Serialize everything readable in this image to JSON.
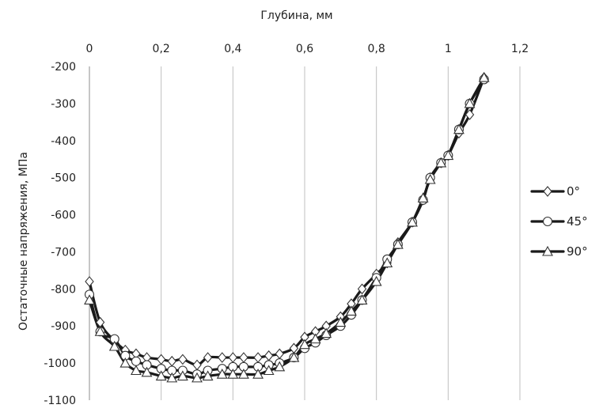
{
  "chart_data": {
    "type": "line",
    "xlabel": "Глубина, мм",
    "ylabel": "Остаточные напряжения, МПа",
    "xlim": [
      0,
      1.2
    ],
    "ylim": [
      -1100,
      -200
    ],
    "xticks": [
      "0",
      "0,2",
      "0,4",
      "0,6",
      "0,8",
      "1",
      "1,2"
    ],
    "xtick_values": [
      0,
      0.2,
      0.4,
      0.6,
      0.8,
      1.0,
      1.2
    ],
    "yticks": [
      "-200",
      "-300",
      "-400",
      "-500",
      "-600",
      "-700",
      "-800",
      "-900",
      "-1000",
      "-1100"
    ],
    "ytick_values": [
      -200,
      -300,
      -400,
      -500,
      -600,
      -700,
      -800,
      -900,
      -1000,
      -1100
    ],
    "x_axis_position": "top",
    "grid": "vertical",
    "legend_position": "right",
    "line_color": "#1a1a1a",
    "series": [
      {
        "name": "0°",
        "marker": "diamond",
        "x": [
          0,
          0.03,
          0.07,
          0.1,
          0.13,
          0.16,
          0.2,
          0.23,
          0.26,
          0.3,
          0.33,
          0.37,
          0.4,
          0.43,
          0.47,
          0.5,
          0.53,
          0.57,
          0.6,
          0.63,
          0.66,
          0.7,
          0.73,
          0.76,
          0.8,
          0.83,
          0.86,
          0.9,
          0.93,
          0.95,
          0.98,
          1.0,
          1.03,
          1.06,
          1.1
        ],
        "y": [
          -780,
          -890,
          -940,
          -965,
          -975,
          -985,
          -990,
          -995,
          -990,
          -1005,
          -985,
          -985,
          -985,
          -985,
          -985,
          -980,
          -975,
          -960,
          -930,
          -915,
          -900,
          -875,
          -840,
          -800,
          -760,
          -730,
          -675,
          -620,
          -560,
          -500,
          -460,
          -440,
          -380,
          -330,
          -230
        ]
      },
      {
        "name": "45°",
        "marker": "circle",
        "x": [
          0,
          0.03,
          0.07,
          0.1,
          0.13,
          0.16,
          0.2,
          0.23,
          0.26,
          0.3,
          0.33,
          0.37,
          0.4,
          0.43,
          0.47,
          0.5,
          0.53,
          0.57,
          0.6,
          0.63,
          0.66,
          0.7,
          0.73,
          0.76,
          0.8,
          0.83,
          0.86,
          0.9,
          0.93,
          0.95,
          0.98,
          1.0,
          1.03,
          1.06,
          1.1
        ],
        "y": [
          -815,
          -915,
          -935,
          -980,
          -995,
          -1005,
          -1015,
          -1020,
          -1020,
          -1030,
          -1020,
          -1015,
          -1010,
          -1010,
          -1010,
          -1005,
          -1000,
          -985,
          -960,
          -945,
          -925,
          -900,
          -870,
          -830,
          -770,
          -720,
          -680,
          -620,
          -560,
          -500,
          -460,
          -440,
          -370,
          -300,
          -235
        ]
      },
      {
        "name": "90°",
        "marker": "triangle",
        "x": [
          0,
          0.03,
          0.07,
          0.1,
          0.13,
          0.16,
          0.2,
          0.23,
          0.26,
          0.3,
          0.33,
          0.37,
          0.4,
          0.43,
          0.47,
          0.5,
          0.53,
          0.57,
          0.6,
          0.63,
          0.66,
          0.7,
          0.73,
          0.76,
          0.8,
          0.83,
          0.86,
          0.9,
          0.93,
          0.95,
          0.98,
          1.0,
          1.03,
          1.06,
          1.1
        ],
        "y": [
          -830,
          -915,
          -955,
          -1000,
          -1020,
          -1025,
          -1035,
          -1040,
          -1035,
          -1040,
          -1035,
          -1030,
          -1030,
          -1030,
          -1030,
          -1020,
          -1010,
          -985,
          -950,
          -935,
          -920,
          -890,
          -860,
          -830,
          -780,
          -730,
          -680,
          -620,
          -555,
          -505,
          -460,
          -440,
          -370,
          -300,
          -230
        ]
      }
    ]
  }
}
